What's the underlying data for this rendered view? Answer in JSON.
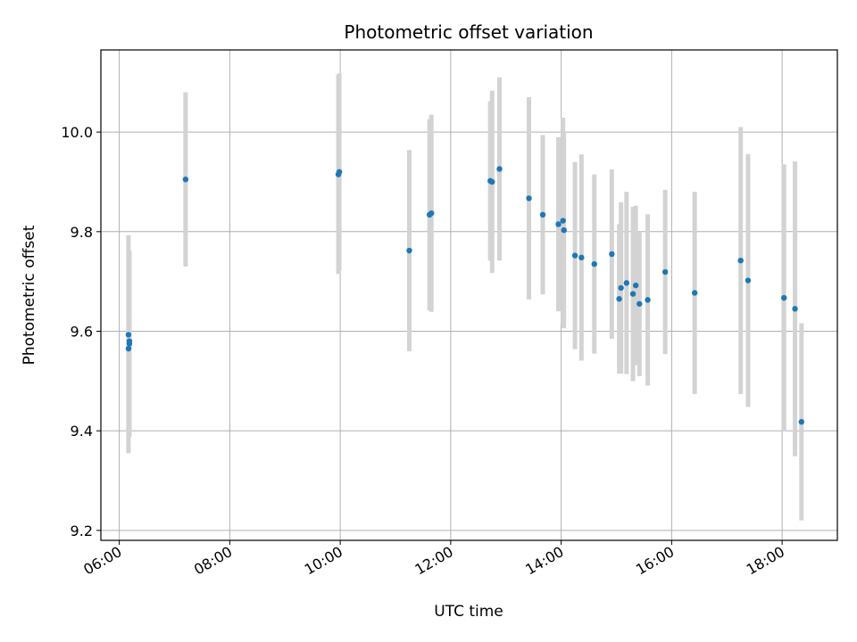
{
  "chart_data": {
    "type": "scatter",
    "title": "Photometric offset variation",
    "xlabel": "UTC time",
    "ylabel": "Photometric offset",
    "x_ticks": [
      "06:00",
      "08:00",
      "10:00",
      "12:00",
      "14:00",
      "16:00",
      "18:00"
    ],
    "y_ticks": [
      "9.2",
      "9.4",
      "9.6",
      "9.8",
      "10.0"
    ],
    "xlim": [
      "05:40",
      "19:00"
    ],
    "ylim": [
      9.18,
      10.165
    ],
    "grid": true,
    "colors": {
      "point": "#1f77b4",
      "errorbar": "#d3d3d3",
      "grid": "#b0b0b0"
    },
    "series": [
      {
        "points": [
          {
            "t": "06:10",
            "y": 9.593,
            "err": 0.2
          },
          {
            "t": "06:10",
            "y": 9.565,
            "err": 0.21
          },
          {
            "t": "06:11",
            "y": 9.575,
            "err": 0.187
          },
          {
            "t": "06:11",
            "y": 9.58,
            "err": 0.18
          },
          {
            "t": "07:12",
            "y": 9.905,
            "err": 0.175
          },
          {
            "t": "09:58",
            "y": 9.915,
            "err": 0.2
          },
          {
            "t": "09:59",
            "y": 9.92,
            "err": 0.198
          },
          {
            "t": "11:15",
            "y": 9.762,
            "err": 0.202
          },
          {
            "t": "11:37",
            "y": 9.834,
            "err": 0.192
          },
          {
            "t": "11:39",
            "y": 9.837,
            "err": 0.198
          },
          {
            "t": "12:43",
            "y": 9.902,
            "err": 0.16
          },
          {
            "t": "12:45",
            "y": 9.9,
            "err": 0.183
          },
          {
            "t": "12:53",
            "y": 9.926,
            "err": 0.184
          },
          {
            "t": "13:25",
            "y": 9.867,
            "err": 0.203
          },
          {
            "t": "13:40",
            "y": 9.834,
            "err": 0.16
          },
          {
            "t": "13:57",
            "y": 9.815,
            "err": 0.175
          },
          {
            "t": "14:02",
            "y": 9.822,
            "err": 0.207
          },
          {
            "t": "14:03",
            "y": 9.803,
            "err": 0.197
          },
          {
            "t": "14:15",
            "y": 9.752,
            "err": 0.188
          },
          {
            "t": "14:22",
            "y": 9.748,
            "err": 0.207
          },
          {
            "t": "14:36",
            "y": 9.735,
            "err": 0.18
          },
          {
            "t": "14:55",
            "y": 9.755,
            "err": 0.17
          },
          {
            "t": "15:03",
            "y": 9.665,
            "err": 0.15
          },
          {
            "t": "15:05",
            "y": 9.687,
            "err": 0.172
          },
          {
            "t": "15:11",
            "y": 9.697,
            "err": 0.183
          },
          {
            "t": "15:18",
            "y": 9.675,
            "err": 0.175
          },
          {
            "t": "15:21",
            "y": 9.692,
            "err": 0.16
          },
          {
            "t": "15:25",
            "y": 9.655,
            "err": 0.145
          },
          {
            "t": "15:34",
            "y": 9.663,
            "err": 0.172
          },
          {
            "t": "15:53",
            "y": 9.719,
            "err": 0.165
          },
          {
            "t": "16:25",
            "y": 9.677,
            "err": 0.203
          },
          {
            "t": "17:15",
            "y": 9.742,
            "err": 0.268
          },
          {
            "t": "17:23",
            "y": 9.702,
            "err": 0.254
          },
          {
            "t": "18:02",
            "y": 9.667,
            "err": 0.268
          },
          {
            "t": "18:14",
            "y": 9.645,
            "err": 0.296
          },
          {
            "t": "18:21",
            "y": 9.418,
            "err": 0.198
          }
        ]
      }
    ]
  }
}
